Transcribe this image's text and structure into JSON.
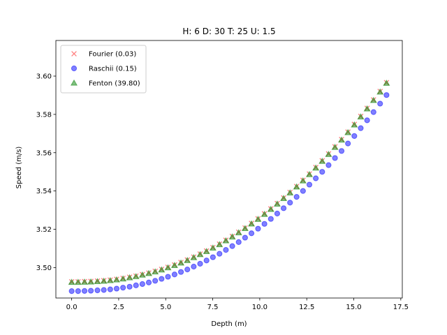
{
  "chart_data": {
    "type": "scatter",
    "title": "H: 6 D: 30 T: 25 U: 1.5",
    "xlabel": "Depth (m)",
    "ylabel": "Speed (m/s)",
    "xlim": [
      -0.84,
      17.58
    ],
    "ylim": [
      3.4841,
      3.6186
    ],
    "xticks": [
      0.0,
      2.5,
      5.0,
      7.5,
      10.0,
      12.5,
      15.0,
      17.5
    ],
    "xtick_labels": [
      "0.0",
      "2.5",
      "5.0",
      "7.5",
      "10.0",
      "12.5",
      "15.0",
      "17.5"
    ],
    "yticks": [
      3.5,
      3.52,
      3.54,
      3.56,
      3.58,
      3.6
    ],
    "ytick_labels": [
      "3.50",
      "3.52",
      "3.54",
      "3.56",
      "3.58",
      "3.60"
    ],
    "grid": false,
    "legend_position": "top-left",
    "x": [
      0.0,
      0.342,
      0.684,
      1.02,
      1.37,
      1.71,
      2.05,
      2.39,
      2.73,
      3.08,
      3.42,
      3.76,
      4.1,
      4.44,
      4.78,
      5.12,
      5.47,
      5.81,
      6.15,
      6.49,
      6.83,
      7.17,
      7.51,
      7.86,
      8.2,
      8.54,
      8.88,
      9.22,
      9.56,
      9.91,
      10.25,
      10.59,
      10.93,
      11.27,
      11.61,
      11.96,
      12.3,
      12.64,
      12.98,
      13.32,
      13.66,
      14.0,
      14.35,
      14.69,
      15.03,
      15.37,
      15.71,
      16.05,
      16.4,
      16.74
    ],
    "series": [
      {
        "name": "Fourier (0.03)",
        "marker": "x",
        "color": "#ff0000",
        "values": [
          3.4926,
          3.4926,
          3.4927,
          3.4928,
          3.493,
          3.4932,
          3.4935,
          3.4939,
          3.4944,
          3.495,
          3.4956,
          3.4964,
          3.4972,
          3.4981,
          3.4991,
          3.5002,
          3.5014,
          3.5027,
          3.504,
          3.5055,
          3.5071,
          3.5087,
          3.5105,
          3.5123,
          3.5143,
          3.5163,
          3.5185,
          3.5207,
          3.5231,
          3.5255,
          3.5281,
          3.5307,
          3.5335,
          3.5364,
          3.5393,
          3.5424,
          3.5456,
          3.5489,
          3.5523,
          3.5558,
          3.5594,
          3.5631,
          3.5669,
          3.5708,
          3.5748,
          3.579,
          3.5832,
          3.5876,
          3.592,
          3.5966
        ]
      },
      {
        "name": "Raschii (0.15)",
        "marker": "o",
        "color": "#0000ff",
        "values": [
          3.4877,
          3.4877,
          3.4878,
          3.4879,
          3.4881,
          3.4883,
          3.4886,
          3.489,
          3.4895,
          3.49,
          3.4907,
          3.4914,
          3.4922,
          3.4931,
          3.4941,
          3.4952,
          3.4964,
          3.4977,
          3.499,
          3.5005,
          3.502,
          3.5037,
          3.5054,
          3.5072,
          3.5092,
          3.5112,
          3.5133,
          3.5156,
          3.5179,
          3.5203,
          3.5228,
          3.5254,
          3.5282,
          3.531,
          3.5339,
          3.5369,
          3.54,
          3.5433,
          3.5466,
          3.55,
          3.5535,
          3.5572,
          3.5609,
          3.5648,
          3.5687,
          3.5728,
          3.5769,
          3.5812,
          3.5856,
          3.5901
        ]
      },
      {
        "name": "Fenton (39.80)",
        "marker": "^",
        "color": "#008000",
        "values": [
          3.4923,
          3.4923,
          3.4924,
          3.4925,
          3.4927,
          3.4929,
          3.4932,
          3.4936,
          3.4941,
          3.4947,
          3.4953,
          3.4961,
          3.4969,
          3.4978,
          3.4988,
          3.4999,
          3.5011,
          3.5024,
          3.5037,
          3.5052,
          3.5068,
          3.5084,
          3.5102,
          3.512,
          3.514,
          3.516,
          3.5182,
          3.5204,
          3.5228,
          3.5252,
          3.5278,
          3.5304,
          3.5332,
          3.5361,
          3.539,
          3.5421,
          3.5453,
          3.5486,
          3.552,
          3.5555,
          3.5591,
          3.5628,
          3.5666,
          3.5705,
          3.5745,
          3.5787,
          3.5829,
          3.5873,
          3.5917,
          3.5963
        ]
      }
    ]
  }
}
